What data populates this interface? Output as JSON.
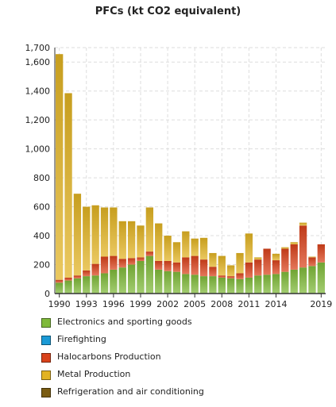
{
  "chart_data": {
    "type": "bar",
    "stacked": true,
    "title": "PFCs (kt CO2 equivalent)",
    "xlabel": "",
    "ylabel": "",
    "ylim": [
      0,
      1700
    ],
    "yticks": [
      0,
      200,
      400,
      600,
      800,
      1000,
      1200,
      1400,
      1600,
      1700
    ],
    "ytick_labels": [
      "0",
      "200",
      "400",
      "600",
      "800",
      "1,000",
      "1,200",
      "1,400",
      "1,600",
      "1,700"
    ],
    "xtick_labels": [
      "1990",
      "1993",
      "1996",
      "1999",
      "2002",
      "2005",
      "2008",
      "2011",
      "2014",
      "2019"
    ],
    "grid": true,
    "legend_position": "bottom",
    "categories": [
      "1990",
      "1991",
      "1992",
      "1993",
      "1994",
      "1995",
      "1996",
      "1997",
      "1998",
      "1999",
      "2000",
      "2001",
      "2002",
      "2003",
      "2004",
      "2005",
      "2006",
      "2007",
      "2008",
      "2009",
      "2010",
      "2011",
      "2012",
      "2013",
      "2014",
      "2015",
      "2016",
      "2017",
      "2018",
      "2019"
    ],
    "series": [
      {
        "name": "Electronics and sporting goods",
        "color": "#7fba3a",
        "values": [
          75,
          90,
          105,
          120,
          125,
          140,
          165,
          180,
          200,
          225,
          260,
          165,
          155,
          150,
          135,
          130,
          120,
          120,
          110,
          105,
          100,
          110,
          125,
          130,
          135,
          150,
          165,
          180,
          190,
          215
        ]
      },
      {
        "name": "Firefighting",
        "color": "#1b9ad6",
        "values": [
          0,
          0,
          0,
          0,
          0,
          0,
          0,
          0,
          0,
          0,
          0,
          0,
          0,
          0,
          0,
          0,
          0,
          0,
          0,
          0,
          0,
          0,
          0,
          0,
          0,
          0,
          0,
          0,
          0,
          0
        ]
      },
      {
        "name": "Halocarbons Production",
        "color": "#d9421b",
        "values": [
          20,
          20,
          20,
          40,
          80,
          115,
          95,
          60,
          45,
          25,
          30,
          60,
          70,
          65,
          115,
          130,
          115,
          65,
          15,
          15,
          40,
          105,
          110,
          180,
          95,
          160,
          175,
          290,
          60,
          125
        ]
      },
      {
        "name": "Metal Production",
        "color": "#e2b322",
        "values": [
          1560,
          1275,
          565,
          440,
          405,
          340,
          335,
          260,
          255,
          220,
          305,
          260,
          175,
          140,
          180,
          120,
          150,
          95,
          135,
          75,
          140,
          200,
          15,
          0,
          45,
          10,
          15,
          20,
          5,
          0
        ]
      },
      {
        "name": "Refrigeration and air conditioning",
        "color": "#7a5c13",
        "values": [
          0,
          0,
          0,
          0,
          0,
          0,
          0,
          0,
          0,
          0,
          0,
          0,
          0,
          0,
          0,
          0,
          0,
          0,
          0,
          0,
          0,
          0,
          0,
          0,
          0,
          0,
          0,
          0,
          0,
          0
        ]
      }
    ]
  }
}
